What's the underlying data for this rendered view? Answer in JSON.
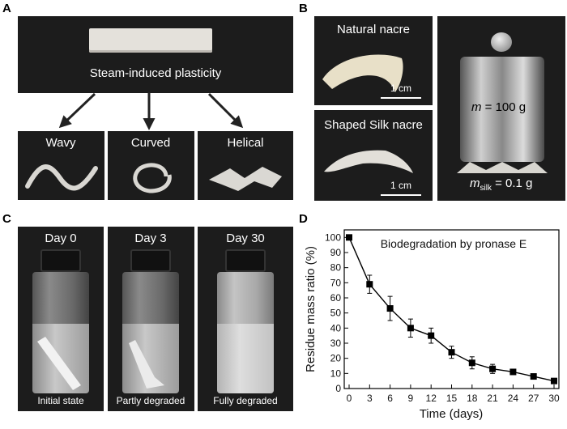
{
  "panel_labels": {
    "a": "A",
    "b": "B",
    "c": "C",
    "d": "D"
  },
  "panel_a": {
    "process_label": "Steam-induced plasticity",
    "shapes": [
      "Wavy",
      "Curved",
      "Helical"
    ]
  },
  "panel_b": {
    "natural_label": "Natural nacre",
    "shaped_label": "Shaped Silk nacre",
    "scale_bar": "1 cm",
    "mass_label_var": "m",
    "mass_label_rest": " = 100 g",
    "silk_mass_var": "m",
    "silk_mass_sub": "silk",
    "silk_mass_rest": " = 0.1 g"
  },
  "panel_c": {
    "vials": [
      {
        "day": "Day 0",
        "state": "Initial state"
      },
      {
        "day": "Day 3",
        "state": "Partly degraded"
      },
      {
        "day": "Day 30",
        "state": "Fully degraded"
      }
    ]
  },
  "colors": {
    "marker": "#000000",
    "line": "#000000",
    "photo_bg": "#1c1c1c"
  },
  "chart_data": {
    "type": "line",
    "title": "Biodegradation by pronase E",
    "xlabel": "Time (days)",
    "ylabel": "Residue mass ratio (%)",
    "xlim": [
      0,
      30
    ],
    "ylim": [
      0,
      105
    ],
    "xticks": [
      0,
      3,
      6,
      9,
      12,
      15,
      18,
      21,
      24,
      27,
      30
    ],
    "yticks": [
      0,
      10,
      20,
      30,
      40,
      50,
      60,
      70,
      80,
      90,
      100
    ],
    "grid": false,
    "series": [
      {
        "x": [
          0,
          3,
          6,
          9,
          12,
          15,
          18,
          21,
          24,
          27,
          30
        ],
        "y": [
          100,
          69,
          53,
          40,
          35,
          24,
          17,
          13,
          11,
          8,
          5
        ],
        "err": [
          0,
          6,
          8,
          6,
          5,
          4,
          4,
          3,
          0,
          0,
          0
        ]
      }
    ]
  }
}
